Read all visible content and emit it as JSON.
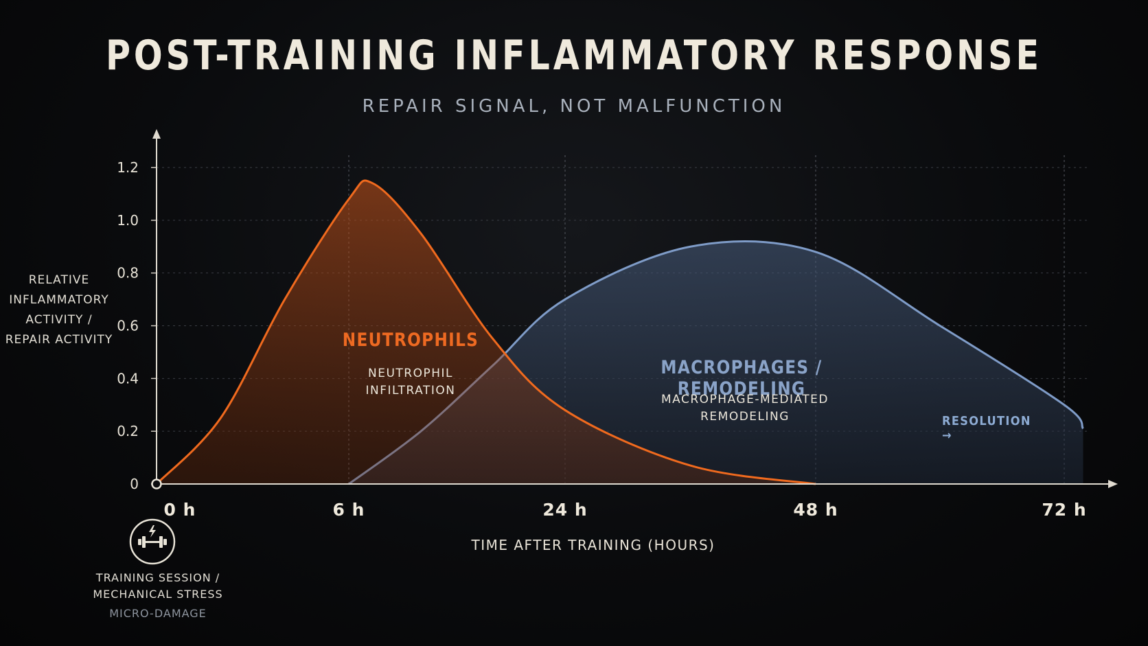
{
  "chart_data": {
    "type": "area",
    "title": "POST-TRAINING INFLAMMATORY RESPONSE",
    "subtitle": "REPAIR SIGNAL, NOT MALFUNCTION",
    "ylabel": [
      "RELATIVE",
      "INFLAMMATORY",
      "ACTIVITY /",
      "REPAIR ACTIVITY"
    ],
    "xlabel": "TIME AFTER TRAINING (HOURS)",
    "ylim": [
      0,
      1.2
    ],
    "yticks": [
      0,
      0.2,
      0.4,
      0.6,
      0.8,
      1.0,
      1.2
    ],
    "ytick_labels": [
      "0",
      "0.2",
      "0.4",
      "0.6",
      "0.8",
      "1.0",
      "1.2"
    ],
    "xtick_labels": [
      "0 h",
      "6 h",
      "24 h",
      "48 h",
      "72 h"
    ],
    "grid": true,
    "series": [
      {
        "color": "#f06a1e",
        "points": [
          [
            "0 h",
            0.0
          ],
          [
            "2 h",
            0.25
          ],
          [
            "4 h",
            0.7
          ],
          [
            "6 h",
            1.08
          ],
          [
            "8 h",
            1.14
          ],
          [
            "12 h",
            0.95
          ],
          [
            "18 h",
            0.55
          ],
          [
            "24 h",
            0.28
          ],
          [
            "36 h",
            0.07
          ],
          [
            "48 h",
            0.0
          ]
        ]
      },
      {
        "color": "#7f9cc8",
        "points": [
          [
            "6 h",
            0.0
          ],
          [
            "12 h",
            0.2
          ],
          [
            "18 h",
            0.45
          ],
          [
            "24 h",
            0.7
          ],
          [
            "36 h",
            0.9
          ],
          [
            "48 h",
            0.88
          ],
          [
            "60 h",
            0.6
          ],
          [
            "72 h",
            0.3
          ],
          [
            "74 h",
            0.21
          ]
        ]
      }
    ],
    "annotations": {
      "neutrophils_title": "NEUTROPHILS",
      "neutrophils_sub": [
        "NEUTROPHIL",
        "INFILTRATION"
      ],
      "macrophages_title": "MACROPHAGES / REMODELING",
      "macrophages_sub": [
        "MACROPHAGE-MEDIATED",
        "REMODELING"
      ],
      "resolution": "RESOLUTION →",
      "training": [
        "TRAINING SESSION /",
        "MECHANICAL STRESS"
      ],
      "micro_damage": "MICRO-DAMAGE"
    },
    "training_icon": "dumbbell-lightning-icon"
  }
}
